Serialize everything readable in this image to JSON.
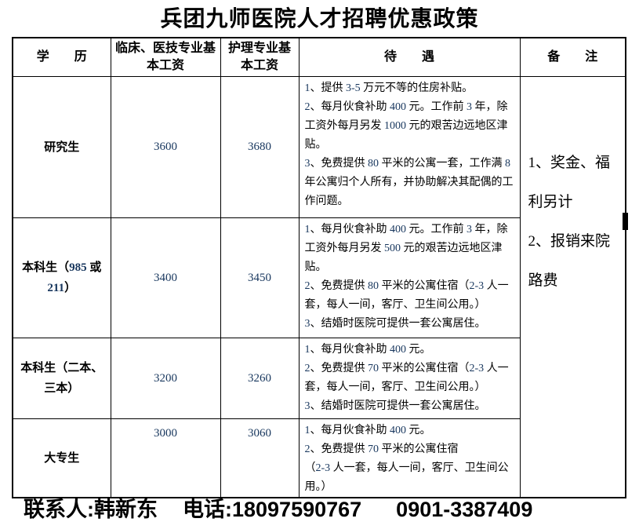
{
  "title": "兵团九师医院人才招聘优惠政策",
  "colors": {
    "number_text": "#17365D",
    "border": "#000000",
    "background": "#ffffff"
  },
  "table": {
    "headers": [
      "学　　历",
      "临床、医技专业基本工资",
      "护理专业基本工资",
      "待　　遇",
      "备　　注"
    ],
    "rows": [
      {
        "degree": "研究生",
        "clinical_salary": "3600",
        "nursing_salary": "3680",
        "benefits": [
          "1、提供 3-5 万元不等的住房补贴。",
          "2、每月伙食补助 400 元。工作前 3 年，除工资外每月另发 1000 元的艰苦边远地区津贴。",
          "3、免费提供 80 平米的公寓一套，工作满 8 年公寓归个人所有，并协助解决其配偶的工作问题。"
        ]
      },
      {
        "degree": "本科生（985 或 211）",
        "clinical_salary": "3400",
        "nursing_salary": "3450",
        "benefits": [
          "1、每月伙食补助 400 元。工作前 3 年，除工资外每月另发 500 元的艰苦边远地区津贴。",
          "2、免费提供 80 平米的公寓住宿（2-3 人一套，每人一间，客厅、卫生间公用。）",
          "3、结婚时医院可提供一套公寓居住。"
        ]
      },
      {
        "degree": "本科生（二本、三本）",
        "clinical_salary": "3200",
        "nursing_salary": "3260",
        "benefits": [
          "1、每月伙食补助 400 元。",
          "2、免费提供 70 平米的公寓住宿（2-3 人一套，每人一间，客厅、卫生间公用。）",
          "3、结婚时医院可提供一套公寓居住。"
        ]
      },
      {
        "degree": "大专生",
        "clinical_salary": "3000",
        "nursing_salary": "3060",
        "benefits": [
          "1、每月伙食补助 400 元。",
          "2、免费提供 70 平米的公寓住宿",
          "（2-3 人一套，每人一间，客厅、卫生间公用。）"
        ]
      }
    ],
    "remark": [
      "1、奖金、福利另计",
      "2、报销来院路费"
    ]
  },
  "footer": {
    "contact_label": "联系人:韩新东",
    "phone_label": "电话:18097590767",
    "phone_alt": "0901-3387409"
  }
}
